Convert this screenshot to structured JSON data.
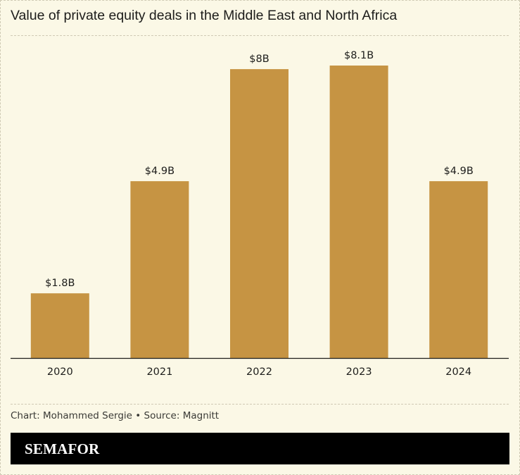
{
  "title": "Value of private equity deals in the Middle East and North Africa",
  "credit": "Chart: Mohammed Sergie • Source: Magnitt",
  "brand": "SEMAFOR",
  "colors": {
    "background": "#fbf8e6",
    "bar": "#c69443",
    "text": "#1d1d1b",
    "axis": "#1d1d1b",
    "brand_bar": "#000000",
    "brand_text": "#ffffff"
  },
  "chart_data": {
    "type": "bar",
    "title": "Value of private equity deals in the Middle East and North Africa",
    "categories": [
      "2020",
      "2021",
      "2022",
      "2023",
      "2024"
    ],
    "values": [
      1.8,
      4.9,
      8.0,
      8.1,
      4.9
    ],
    "data_labels": [
      "$1.8B",
      "$4.9B",
      "$8B",
      "$8.1B",
      "$4.9B"
    ],
    "unit": "$B",
    "ylim": [
      0,
      8.1
    ],
    "grid": false,
    "legend": "none"
  }
}
